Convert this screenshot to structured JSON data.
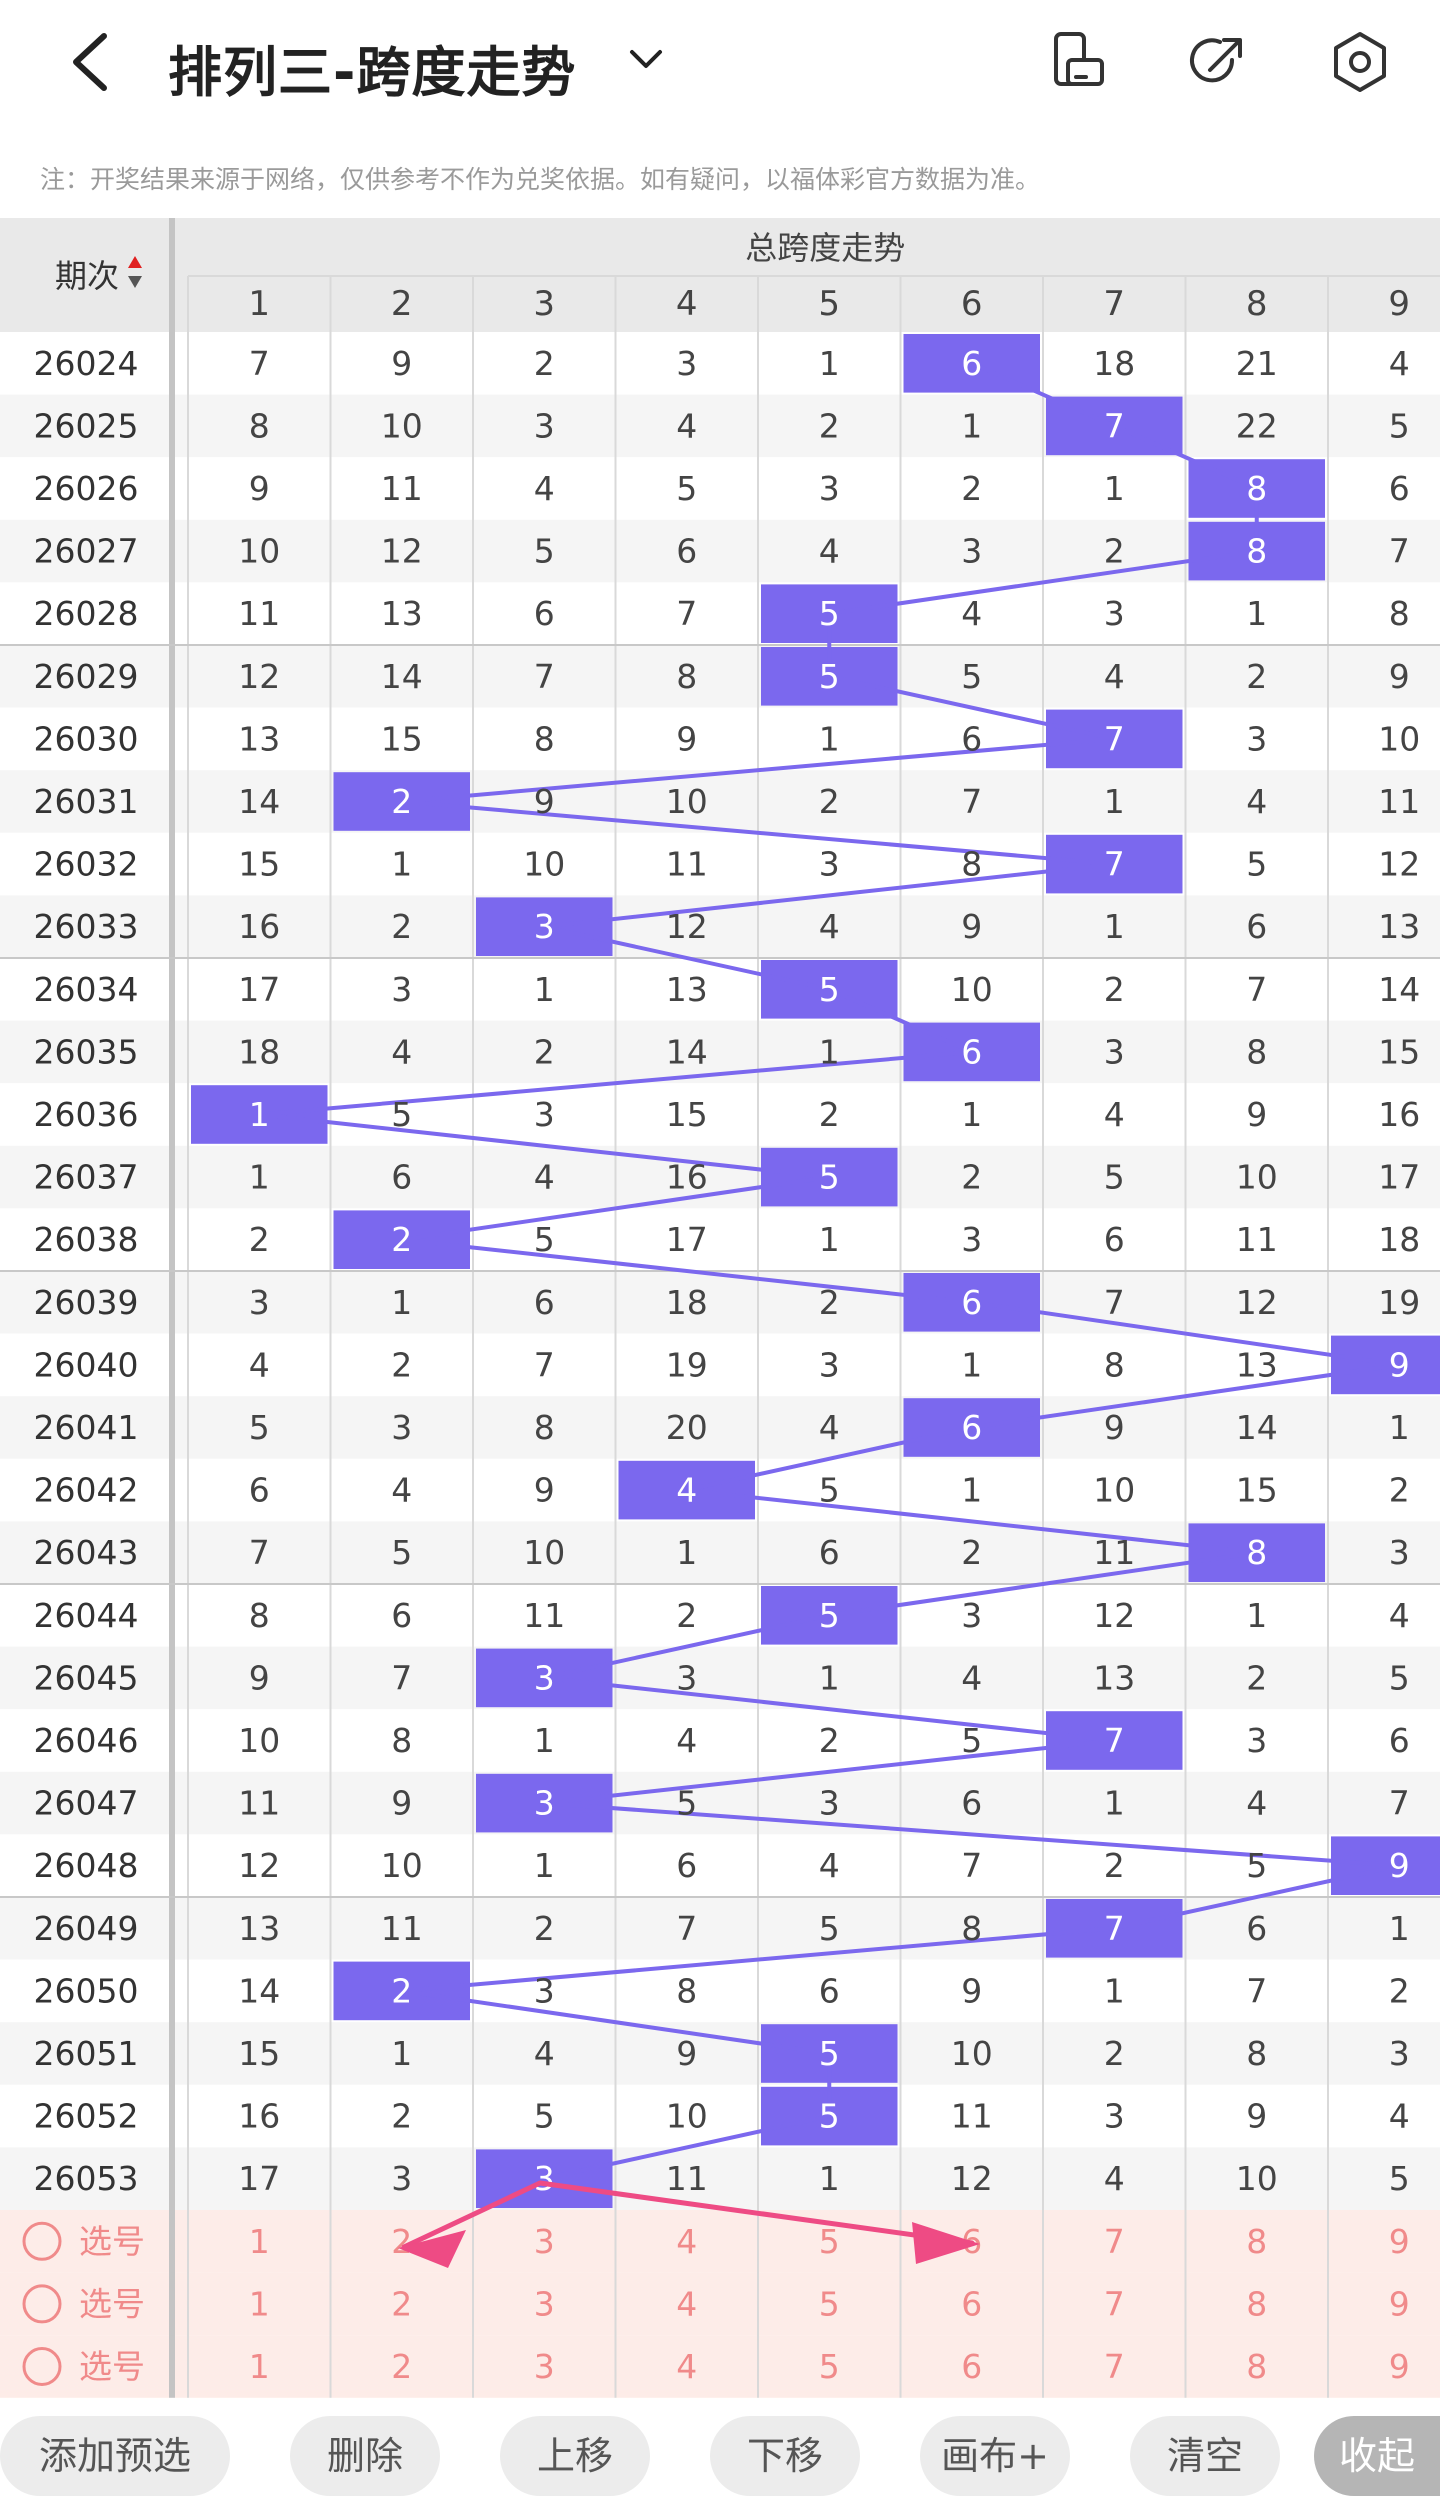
{
  "header": {
    "title": "排列三-跨度走势",
    "back_icon": "back-arrow-icon",
    "dropdown_icon": "chevron-down-icon",
    "icons": [
      "rotate-screen-icon",
      "share-icon",
      "settings-icon"
    ]
  },
  "notice": "注：开奖结果来源于网络，仅供参考不作为兑奖依据。如有疑问，以福体彩官方数据为准。",
  "table": {
    "period_header": "期次",
    "group_header": "总跨度走势",
    "columns": [
      "1",
      "2",
      "3",
      "4",
      "5",
      "6",
      "7",
      "8",
      "9"
    ],
    "rows": [
      {
        "period": "26024",
        "cells": [
          7,
          9,
          2,
          3,
          1,
          6,
          18,
          21,
          4
        ],
        "hit": 6
      },
      {
        "period": "26025",
        "cells": [
          8,
          10,
          3,
          4,
          2,
          1,
          7,
          22,
          5
        ],
        "hit": 7
      },
      {
        "period": "26026",
        "cells": [
          9,
          11,
          4,
          5,
          3,
          2,
          1,
          8,
          6
        ],
        "hit": 8
      },
      {
        "period": "26027",
        "cells": [
          10,
          12,
          5,
          6,
          4,
          3,
          2,
          8,
          7
        ],
        "hit": 8
      },
      {
        "period": "26028",
        "cells": [
          11,
          13,
          6,
          7,
          5,
          4,
          3,
          1,
          8
        ],
        "hit": 5
      },
      {
        "period": "26029",
        "cells": [
          12,
          14,
          7,
          8,
          5,
          5,
          4,
          2,
          9
        ],
        "hit": 5
      },
      {
        "period": "26030",
        "cells": [
          13,
          15,
          8,
          9,
          1,
          6,
          7,
          3,
          10
        ],
        "hit": 7
      },
      {
        "period": "26031",
        "cells": [
          14,
          2,
          9,
          10,
          2,
          7,
          1,
          4,
          11
        ],
        "hit": 2
      },
      {
        "period": "26032",
        "cells": [
          15,
          1,
          10,
          11,
          3,
          8,
          7,
          5,
          12
        ],
        "hit": 7
      },
      {
        "period": "26033",
        "cells": [
          16,
          2,
          3,
          12,
          4,
          9,
          1,
          6,
          13
        ],
        "hit": 3
      },
      {
        "period": "26034",
        "cells": [
          17,
          3,
          1,
          13,
          5,
          10,
          2,
          7,
          14
        ],
        "hit": 5
      },
      {
        "period": "26035",
        "cells": [
          18,
          4,
          2,
          14,
          1,
          6,
          3,
          8,
          15
        ],
        "hit": 6
      },
      {
        "period": "26036",
        "cells": [
          1,
          5,
          3,
          15,
          2,
          1,
          4,
          9,
          16
        ],
        "hit": 1
      },
      {
        "period": "26037",
        "cells": [
          1,
          6,
          4,
          16,
          5,
          2,
          5,
          10,
          17
        ],
        "hit": 5
      },
      {
        "period": "26038",
        "cells": [
          2,
          2,
          5,
          17,
          1,
          3,
          6,
          11,
          18
        ],
        "hit": 2
      },
      {
        "period": "26039",
        "cells": [
          3,
          1,
          6,
          18,
          2,
          6,
          7,
          12,
          19
        ],
        "hit": 6
      },
      {
        "period": "26040",
        "cells": [
          4,
          2,
          7,
          19,
          3,
          1,
          8,
          13,
          9
        ],
        "hit": 9
      },
      {
        "period": "26041",
        "cells": [
          5,
          3,
          8,
          20,
          4,
          6,
          9,
          14,
          1
        ],
        "hit": 6
      },
      {
        "period": "26042",
        "cells": [
          6,
          4,
          9,
          4,
          5,
          1,
          10,
          15,
          2
        ],
        "hit": 4
      },
      {
        "period": "26043",
        "cells": [
          7,
          5,
          10,
          1,
          6,
          2,
          11,
          8,
          3
        ],
        "hit": 8
      },
      {
        "period": "26044",
        "cells": [
          8,
          6,
          11,
          2,
          5,
          3,
          12,
          1,
          4
        ],
        "hit": 5
      },
      {
        "period": "26045",
        "cells": [
          9,
          7,
          3,
          3,
          1,
          4,
          13,
          2,
          5
        ],
        "hit": 3
      },
      {
        "period": "26046",
        "cells": [
          10,
          8,
          1,
          4,
          2,
          5,
          7,
          3,
          6
        ],
        "hit": 7
      },
      {
        "period": "26047",
        "cells": [
          11,
          9,
          3,
          5,
          3,
          6,
          1,
          4,
          7
        ],
        "hit": 3
      },
      {
        "period": "26048",
        "cells": [
          12,
          10,
          1,
          6,
          4,
          7,
          2,
          5,
          9
        ],
        "hit": 9
      },
      {
        "period": "26049",
        "cells": [
          13,
          11,
          2,
          7,
          5,
          8,
          7,
          6,
          1
        ],
        "hit": 7
      },
      {
        "period": "26050",
        "cells": [
          14,
          2,
          3,
          8,
          6,
          9,
          1,
          7,
          2
        ],
        "hit": 2
      },
      {
        "period": "26051",
        "cells": [
          15,
          1,
          4,
          9,
          5,
          10,
          2,
          8,
          3
        ],
        "hit": 5
      },
      {
        "period": "26052",
        "cells": [
          16,
          2,
          5,
          10,
          5,
          11,
          3,
          9,
          4
        ],
        "hit": 5
      },
      {
        "period": "26053",
        "cells": [
          17,
          3,
          3,
          11,
          1,
          12,
          4,
          10,
          5
        ],
        "hit": 3
      }
    ],
    "select_rows": [
      {
        "label": "选号",
        "cells": [
          "1",
          "2",
          "3",
          "4",
          "5",
          "6",
          "7",
          "8",
          "9"
        ]
      },
      {
        "label": "选号",
        "cells": [
          "1",
          "2",
          "3",
          "4",
          "5",
          "6",
          "7",
          "8",
          "9"
        ]
      },
      {
        "label": "选号",
        "cells": [
          "1",
          "2",
          "3",
          "4",
          "5",
          "6",
          "7",
          "8",
          "9"
        ]
      }
    ]
  },
  "bottom_bar": {
    "buttons": [
      "添加预选",
      "删除",
      "上移",
      "下移",
      "画布+",
      "清空"
    ],
    "collapse": "收起"
  },
  "colors": {
    "hit_bg": "#7b68ee",
    "trend_line": "#7b68ee",
    "arrow": "#ee4b84",
    "select_bg": "#fdece8",
    "select_text": "#f08a8a"
  }
}
